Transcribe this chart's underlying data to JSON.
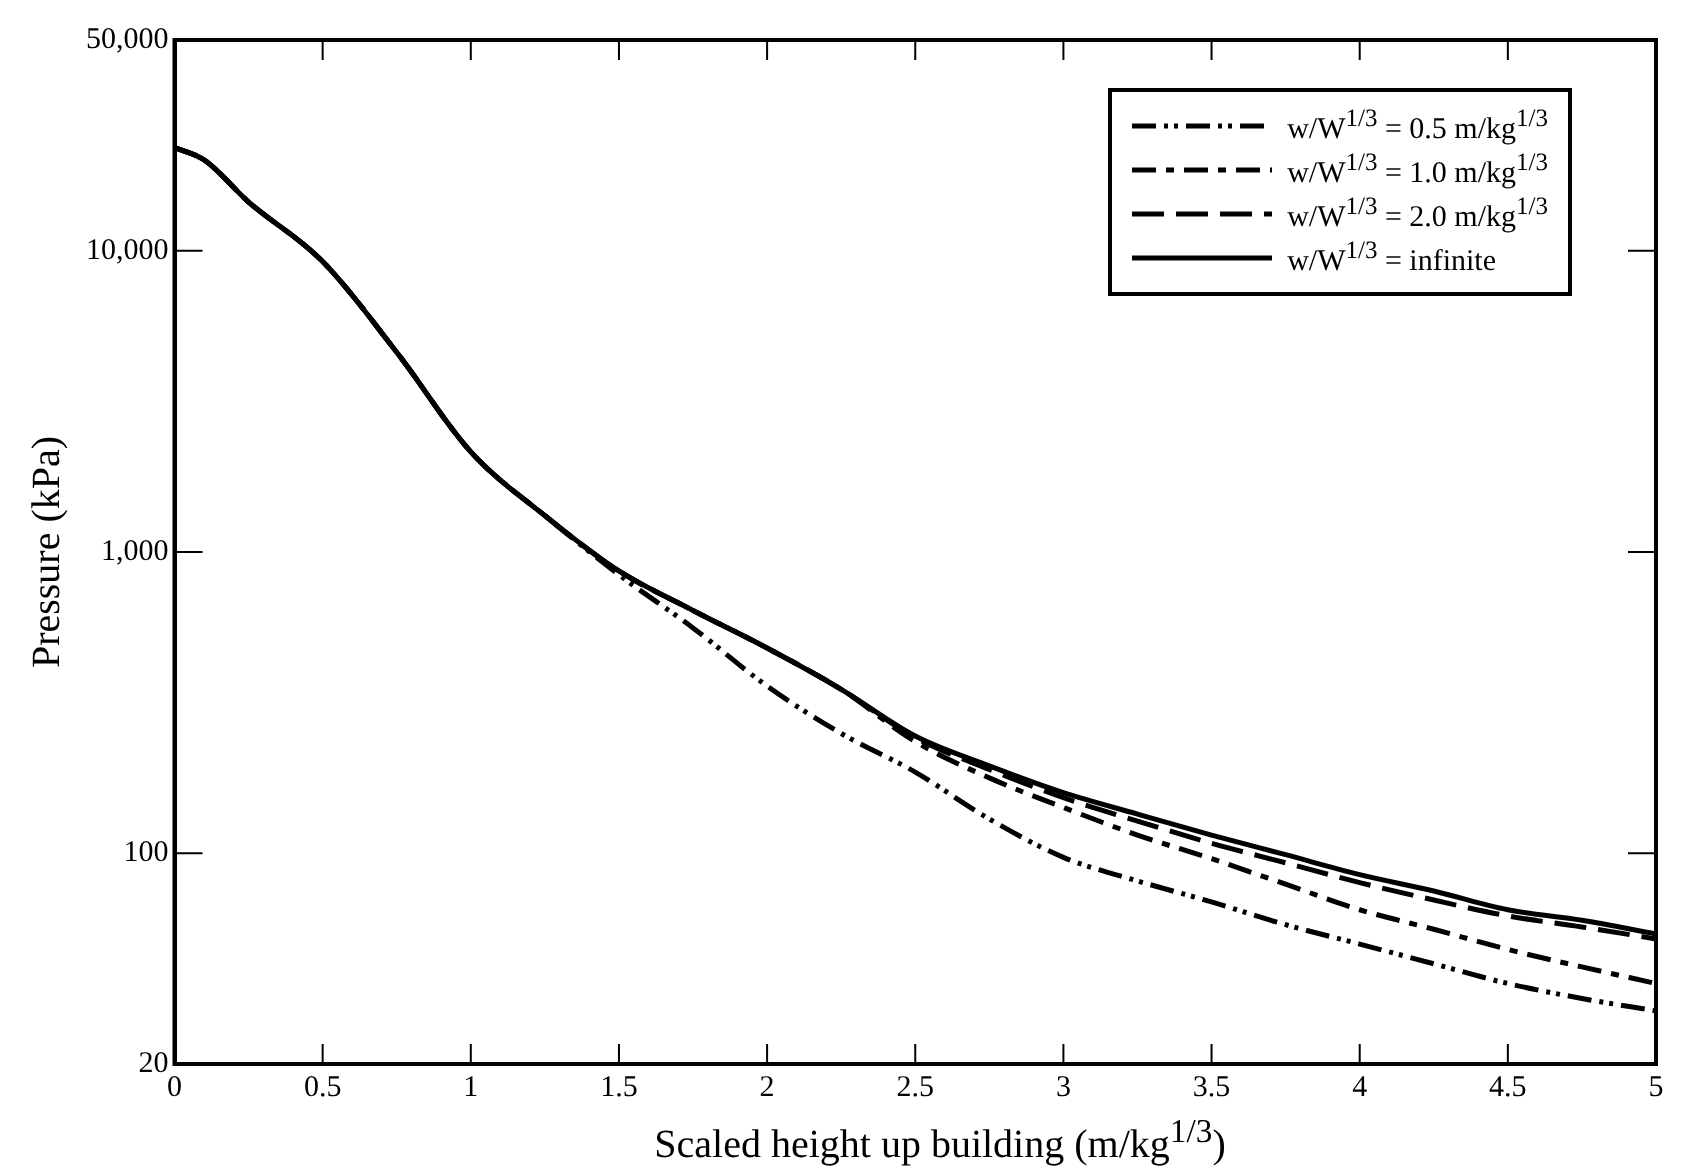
{
  "chart_data": {
    "type": "line",
    "xlabel": "Scaled height up building (m/kg$^{1/3}$)",
    "ylabel": "Pressure (kPa)",
    "x": [
      0,
      0.1,
      0.25,
      0.5,
      0.75,
      1,
      1.25,
      1.5,
      1.75,
      2,
      2.25,
      2.5,
      2.75,
      3,
      3.25,
      3.5,
      3.75,
      4,
      4.25,
      4.5,
      4.75,
      5
    ],
    "series": [
      {
        "name": "w/W$^{1/3}$ = 0.5 m/kg$^{1/3}$",
        "color": "#000000",
        "line_style": "dashdotdot",
        "values": [
          22000,
          20000,
          14500,
          9200,
          4600,
          2150,
          1320,
          840,
          560,
          359,
          250,
          186,
          130,
          97,
          81,
          69,
          58,
          50,
          43,
          37,
          33,
          30
        ]
      },
      {
        "name": "w/W$^{1/3}$ = 1.0 m/kg$^{1/3}$",
        "color": "#000000",
        "line_style": "dashdot",
        "values": [
          22000,
          20000,
          14500,
          9200,
          4600,
          2150,
          1320,
          865,
          640,
          480,
          350,
          235,
          178,
          142,
          115,
          96,
          79,
          65,
          56,
          48,
          42,
          37
        ]
      },
      {
        "name": "w/W$^{1/3}$ = 2.0 m/kg$^{1/3}$",
        "color": "#000000",
        "line_style": "dashed",
        "values": [
          22000,
          20000,
          14500,
          9200,
          4600,
          2150,
          1320,
          865,
          640,
          480,
          350,
          242,
          190,
          153,
          128,
          108,
          93,
          80,
          70,
          62,
          57,
          52
        ]
      },
      {
        "name": "w/W$^{1/3}$ = infinite",
        "color": "#000000",
        "line_style": "solid",
        "values": [
          22000,
          20000,
          14500,
          9200,
          4600,
          2150,
          1320,
          865,
          640,
          480,
          350,
          245,
          195,
          159,
          135,
          115,
          99,
          85,
          75,
          65,
          60,
          54
        ]
      }
    ],
    "xlim": [
      0,
      5
    ],
    "xticks": [
      0,
      0.5,
      1,
      1.5,
      2,
      2.5,
      3,
      3.5,
      4,
      4.5,
      5
    ],
    "ylim": [
      20,
      50000
    ],
    "yticks": [
      20,
      100,
      {
        "value": 1000,
        "label": "1,000"
      },
      {
        "value": 10000,
        "label": "10,000"
      },
      {
        "value": 50000,
        "label": "50,000"
      }
    ],
    "log": "y",
    "grid": false,
    "legend": "top right"
  }
}
